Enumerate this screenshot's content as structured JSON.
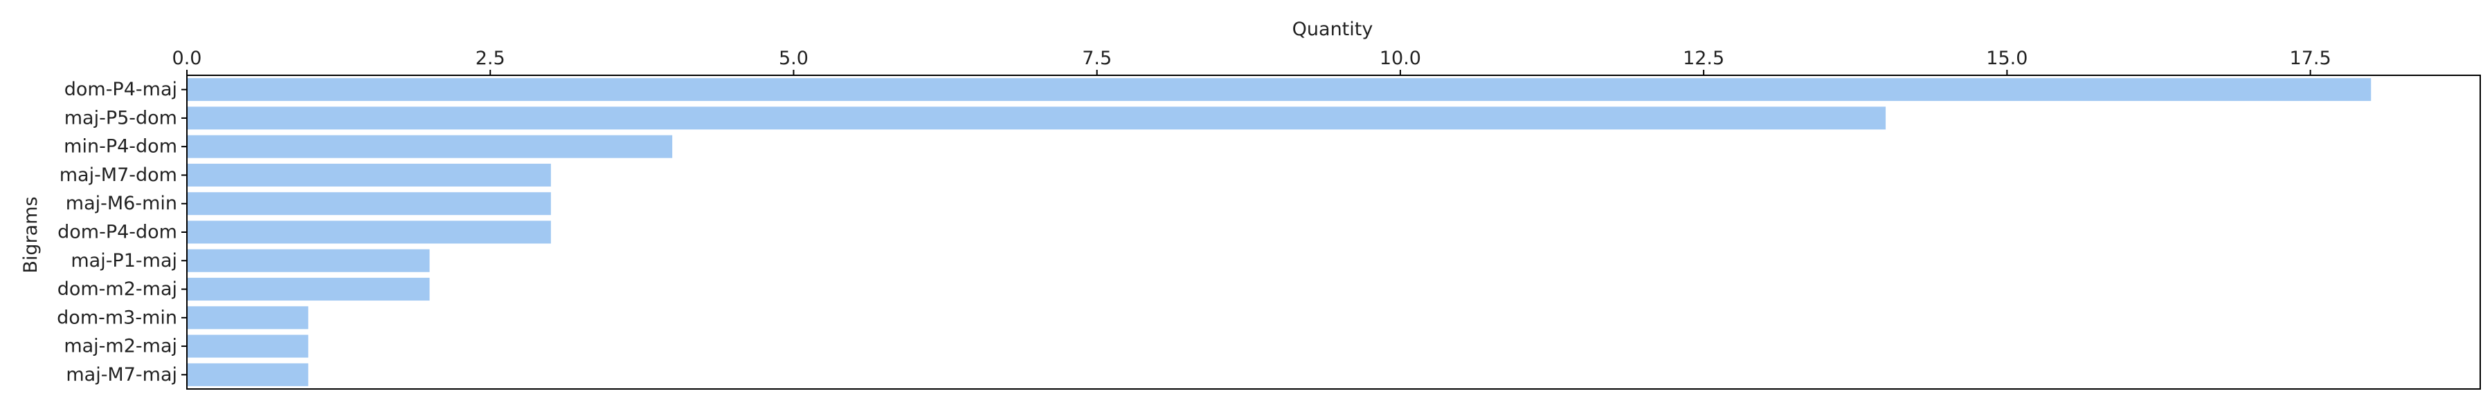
{
  "chart_data": {
    "type": "bar",
    "orientation": "horizontal",
    "xlabel": "Quantity",
    "ylabel": "Bigrams",
    "xaxis_position": "top",
    "xlim": [
      0,
      18.9
    ],
    "xticks": [
      "0.0",
      "2.5",
      "5.0",
      "7.5",
      "10.0",
      "12.5",
      "15.0",
      "17.5"
    ],
    "grid": false,
    "bar_color": "#a1c8f2",
    "categories": [
      "dom-P4-maj",
      "maj-P5-dom",
      "min-P4-dom",
      "maj-M7-dom",
      "maj-M6-min",
      "dom-P4-dom",
      "maj-P1-maj",
      "dom-m2-maj",
      "dom-m3-min",
      "maj-m2-maj",
      "maj-M7-maj"
    ],
    "values": [
      18,
      14,
      4,
      3,
      3,
      3,
      2,
      2,
      1,
      1,
      1
    ]
  }
}
